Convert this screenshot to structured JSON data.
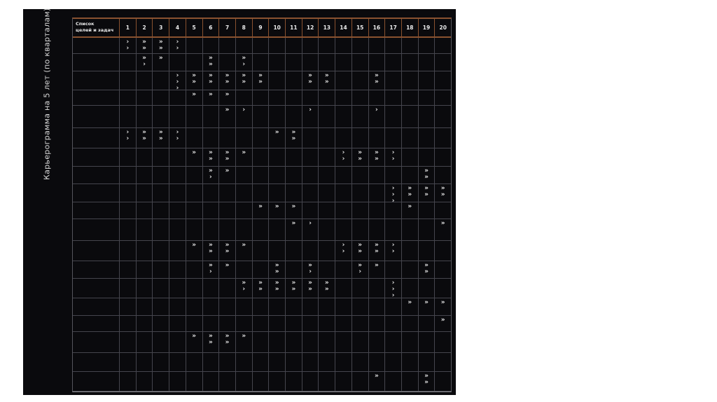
{
  "slide": {
    "side_label": "Карьерограмма на 5 лет (по кварталам)"
  },
  "table_header": {
    "line1": "Список",
    "line2": "целей и задач"
  },
  "colors": {
    "slide_background": "#0a0a0d",
    "header_border": "#8a5230",
    "gridline": "#45454d",
    "text": "#ececec"
  },
  "chart_data": {
    "type": "table",
    "title": "Карьерограмма на 5 лет (по кварталам)",
    "row_label_header": "Список целей и задач",
    "columns": [
      "1",
      "2",
      "3",
      "4",
      "5",
      "6",
      "7",
      "8",
      "9",
      "10",
      "11",
      "12",
      "13",
      "14",
      "15",
      "16",
      "17",
      "18",
      "19",
      "20"
    ],
    "marker_legend": {
      "double_chevron": "»",
      "single_chevron": "›"
    },
    "rows": [
      {
        "h": 23,
        "cells": {
          "1": [
            "›",
            "›"
          ],
          "2": [
            "»",
            "»"
          ],
          "3": [
            "»",
            "»"
          ],
          "4": [
            "›",
            "›"
          ]
        }
      },
      {
        "h": 25,
        "cells": {
          "2": [
            "»",
            "›"
          ],
          "3": [
            "»"
          ],
          "6": [
            "»",
            "»"
          ],
          "8": [
            "»",
            "›"
          ]
        }
      },
      {
        "h": 27,
        "cells": {
          "4": [
            "›",
            "›",
            "›"
          ],
          "5": [
            "»",
            "»"
          ],
          "6": [
            "»",
            "»"
          ],
          "7": [
            "»",
            "»"
          ],
          "8": [
            "»",
            "»"
          ],
          "9": [
            "»",
            "»"
          ],
          "12": [
            "»",
            "»"
          ],
          "13": [
            "»",
            "»"
          ],
          "16": [
            "»",
            "»"
          ]
        }
      },
      {
        "h": 22,
        "cells": {
          "5": [
            "»"
          ],
          "6": [
            "»"
          ],
          "7": [
            "»"
          ]
        }
      },
      {
        "h": 32,
        "cells": {
          "7": [
            "»"
          ],
          "8": [
            "›"
          ],
          "12": [
            "›"
          ],
          "16": [
            "›"
          ]
        }
      },
      {
        "h": 29,
        "cells": {
          "1": [
            "›",
            "›"
          ],
          "2": [
            "»",
            "»"
          ],
          "3": [
            "»",
            "»"
          ],
          "4": [
            "›",
            "›"
          ],
          "10": [
            "»"
          ],
          "11": [
            "»",
            "»"
          ]
        }
      },
      {
        "h": 26,
        "cells": {
          "5": [
            "»"
          ],
          "6": [
            "»",
            "»"
          ],
          "7": [
            "»",
            "»"
          ],
          "8": [
            "»"
          ],
          "14": [
            "›",
            "›"
          ],
          "15": [
            "»",
            "»"
          ],
          "16": [
            "»",
            "»"
          ],
          "17": [
            "›",
            "›"
          ]
        }
      },
      {
        "h": 25,
        "cells": {
          "6": [
            "»",
            "›"
          ],
          "7": [
            "»"
          ],
          "19": [
            "»",
            "»"
          ]
        }
      },
      {
        "h": 26,
        "cells": {
          "17": [
            "›",
            "›",
            "›"
          ],
          "18": [
            "»",
            "»"
          ],
          "19": [
            "»",
            "»"
          ],
          "20": [
            "»",
            "»"
          ]
        }
      },
      {
        "h": 24,
        "cells": {
          "9": [
            "»"
          ],
          "10": [
            "»"
          ],
          "11": [
            "»"
          ],
          "18": [
            "»"
          ]
        }
      },
      {
        "h": 31,
        "cells": {
          "11": [
            "»"
          ],
          "12": [
            "›"
          ],
          "20": [
            "»"
          ]
        }
      },
      {
        "h": 29,
        "cells": {
          "5": [
            "»"
          ],
          "6": [
            "»",
            "»"
          ],
          "7": [
            "»",
            "»"
          ],
          "8": [
            "»"
          ],
          "14": [
            "›",
            "›"
          ],
          "15": [
            "»",
            "»"
          ],
          "16": [
            "»",
            "»"
          ],
          "17": [
            "›",
            "›"
          ]
        }
      },
      {
        "h": 25,
        "cells": {
          "6": [
            "»",
            "›"
          ],
          "7": [
            "»"
          ],
          "10": [
            "»",
            "»"
          ],
          "12": [
            "»",
            "›"
          ],
          "15": [
            "»",
            "›"
          ],
          "16": [
            "»"
          ],
          "19": [
            "»",
            "»"
          ]
        }
      },
      {
        "h": 28,
        "cells": {
          "8": [
            "»",
            "›"
          ],
          "9": [
            "»",
            "»"
          ],
          "10": [
            "»",
            "»"
          ],
          "11": [
            "»",
            "»"
          ],
          "12": [
            "»",
            "»"
          ],
          "13": [
            "»",
            "»"
          ],
          "17": [
            "›",
            "›",
            "›"
          ]
        }
      },
      {
        "h": 25,
        "cells": {
          "18": [
            "»"
          ],
          "19": [
            "»"
          ],
          "20": [
            "»"
          ]
        }
      },
      {
        "h": 23,
        "cells": {
          "20": [
            "»"
          ]
        }
      },
      {
        "h": 30,
        "cells": {
          "5": [
            "»"
          ],
          "6": [
            "»",
            "»"
          ],
          "7": [
            "»",
            "»"
          ],
          "8": [
            "»"
          ]
        }
      },
      {
        "h": 27,
        "cells": {}
      },
      {
        "h": 28,
        "cells": {
          "16": [
            "»"
          ],
          "19": [
            "»",
            "»"
          ]
        }
      }
    ]
  }
}
